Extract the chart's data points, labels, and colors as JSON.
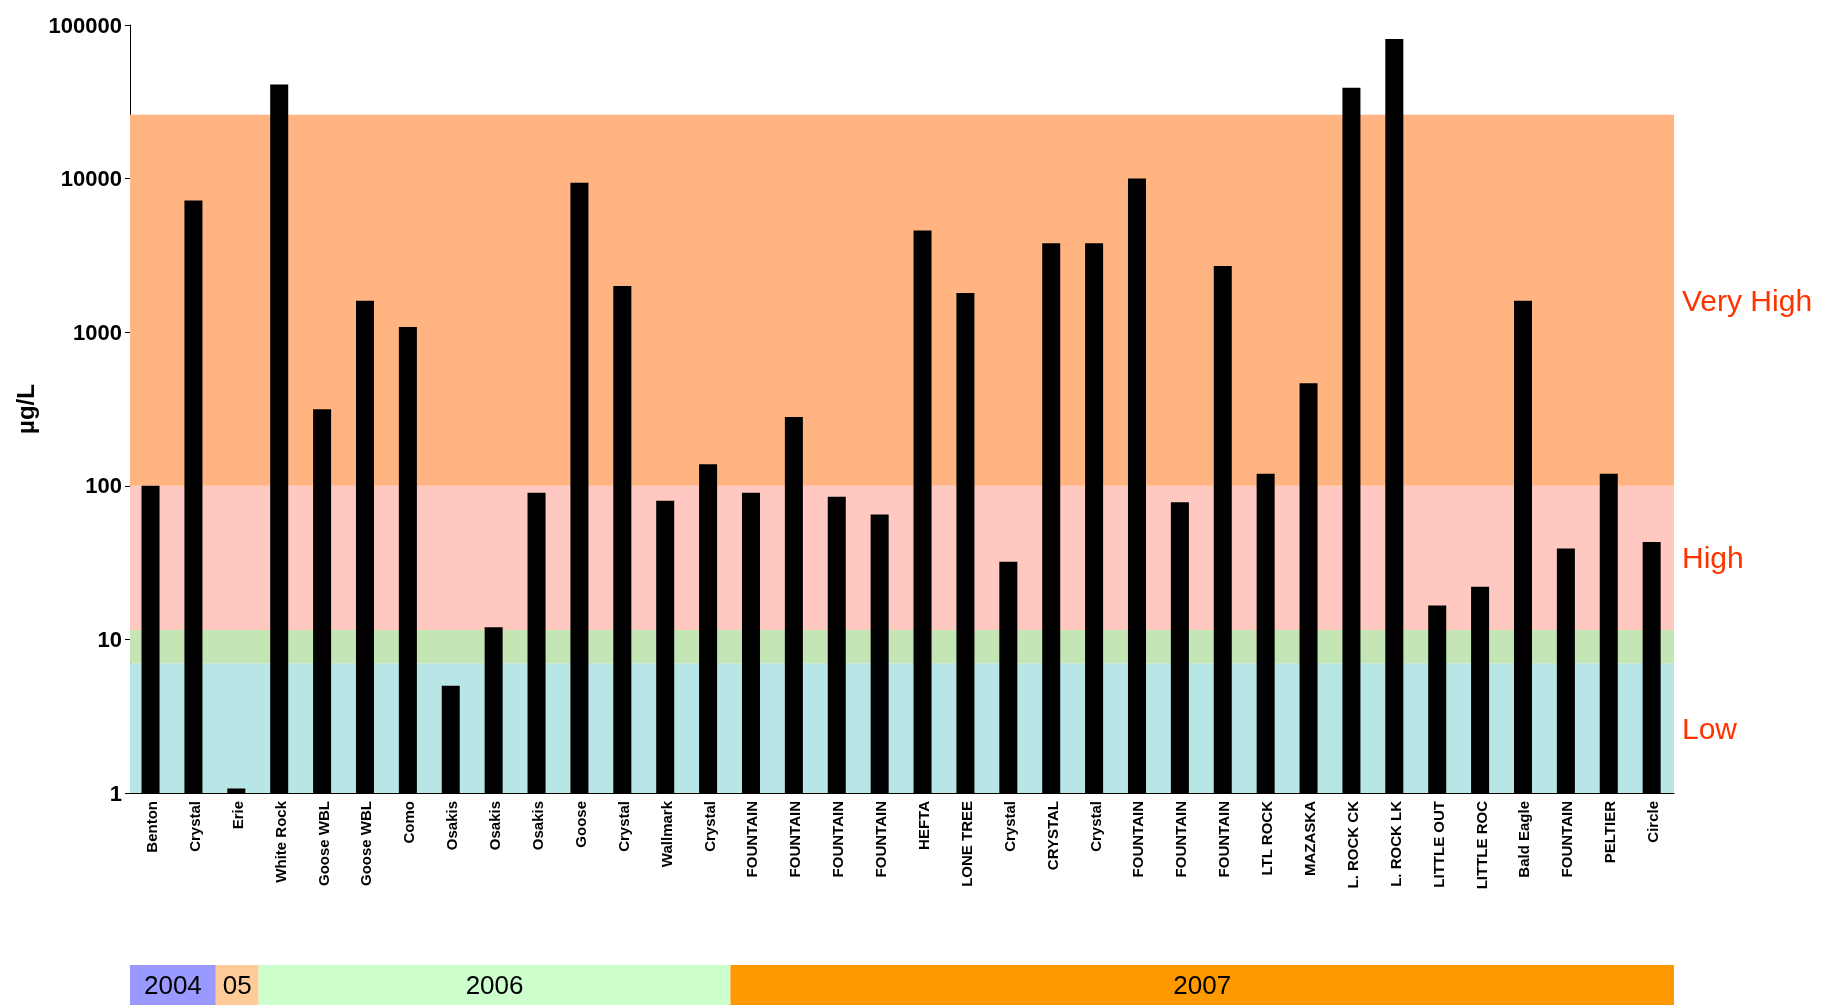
{
  "chart_data": {
    "type": "bar",
    "ylabel": "µg/L",
    "log": true,
    "grid": false,
    "color": "#000000",
    "categories": [
      "Benton",
      "Crystal",
      "Erie",
      "White Rock",
      "Goose WBL",
      "Goose WBL",
      "Como",
      "Osakis",
      "Osakis",
      "Osakis",
      "Goose",
      "Crystal",
      "Wallmark",
      "Crystal",
      "FOUNTAIN",
      "FOUNTAIN",
      "FOUNTAIN",
      "FOUNTAIN",
      "HEFTA",
      "LONE TREE",
      "Crystal",
      "CRYSTAL",
      "Crystal",
      "FOUNTAIN",
      "FOUNTAIN",
      "FOUNTAIN",
      "LTL ROCK",
      "MAZASKA",
      "L. ROCK CK",
      "L. ROCK LK",
      "LITTLE OUT",
      "LITTLE ROC",
      "Bald Eagle",
      "FOUNTAIN",
      "PELTIER",
      "Circle"
    ],
    "values": [
      100,
      7200,
      1.07,
      41000,
      315,
      1600,
      1080,
      5,
      12,
      90,
      9400,
      2000,
      80,
      138,
      90,
      280,
      85,
      65,
      4600,
      1800,
      32,
      3800,
      3800,
      10000,
      78,
      2700,
      120,
      465,
      39000,
      81000,
      16.6,
      22,
      1600,
      39,
      120,
      43
    ],
    "ylim": [
      1,
      100000
    ],
    "yticks": [
      1,
      10,
      100,
      1000,
      10000,
      100000
    ],
    "bands": [
      {
        "axis": "y",
        "from": 1,
        "to": 7,
        "label": "Low",
        "color": "#b8e6e6"
      },
      {
        "axis": "y",
        "from": 7,
        "to": 11.5,
        "label": null,
        "color": "#c4e6b4"
      },
      {
        "axis": "y",
        "from": 11.5,
        "to": 100,
        "label": "High",
        "color": "#ffc8c0"
      },
      {
        "axis": "y",
        "from": 100,
        "to": 26000,
        "label": "Very High",
        "color": "#ffb482"
      }
    ],
    "annotations": [
      "2004",
      "05",
      "2006",
      "2007"
    ]
  }
}
